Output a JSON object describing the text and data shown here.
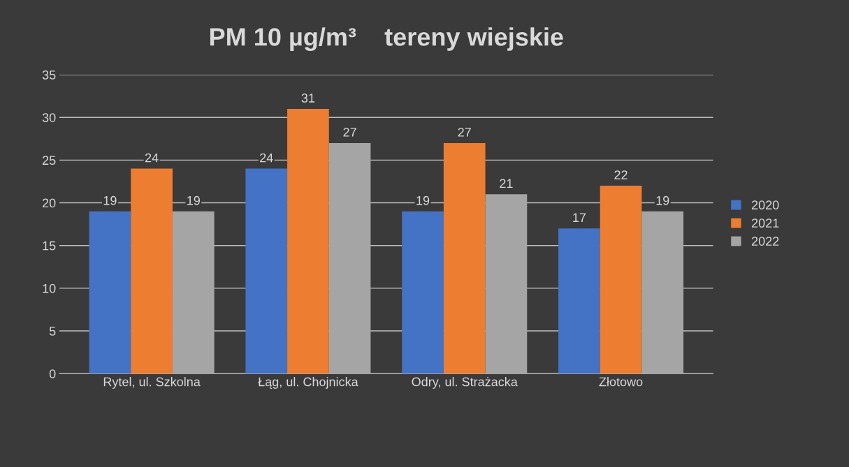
{
  "chart_data": {
    "type": "bar",
    "title": "PM 10 µg/m³    tereny wiejskie",
    "categories": [
      "Rytel, ul. Szkolna",
      "Łąg, ul. Chojnicka",
      "Odry, ul. Strażacka",
      "Złotowo"
    ],
    "series": [
      {
        "name": "2020",
        "color": "#4472c4",
        "values": [
          19,
          24,
          19,
          17
        ]
      },
      {
        "name": "2021",
        "color": "#ed7d31",
        "values": [
          24,
          31,
          27,
          22
        ]
      },
      {
        "name": "2022",
        "color": "#a5a5a5",
        "values": [
          19,
          27,
          21,
          19
        ]
      }
    ],
    "ylim": [
      0,
      35
    ],
    "yticks": [
      0,
      5,
      10,
      15,
      20,
      25,
      30,
      35
    ],
    "grid": "y",
    "legend": "right",
    "data_labels": true
  }
}
